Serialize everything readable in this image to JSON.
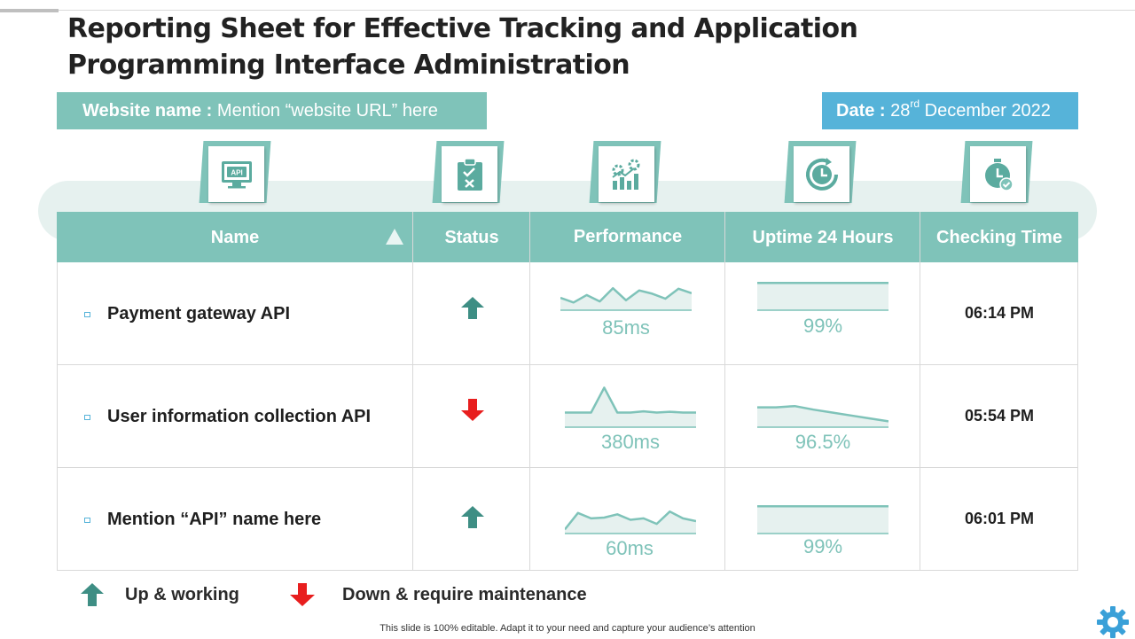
{
  "slide": {
    "title": "Reporting Sheet for Effective Tracking and Application Programming Interface Administration",
    "website_label": "Website name :",
    "website_value": "Mention “website URL” here",
    "date_label": "Date :",
    "date_day": "28",
    "date_suffix": "rd",
    "date_rest": "December 2022"
  },
  "icons": [
    "api-monitor-icon",
    "clipboard-checklist-icon",
    "performance-chart-gears-icon",
    "clock-refresh-icon",
    "stopwatch-check-icon"
  ],
  "icon_api_text": "API",
  "table": {
    "headers": [
      "Name",
      "Status",
      "Performance",
      "Uptime 24 Hours",
      "Checking Time"
    ],
    "rows": [
      {
        "name": "Payment gateway API",
        "status": "up",
        "performance": "85ms",
        "uptime": "99%",
        "time": "06:14 PM",
        "perf_trend": [
          0.45,
          0.28,
          0.55,
          0.32,
          0.8,
          0.36,
          0.72,
          0.6,
          0.42,
          0.78,
          0.62
        ],
        "uptime_trend": [
          0.99,
          0.99,
          0.99,
          0.99,
          0.99
        ]
      },
      {
        "name": "User information collection API",
        "status": "down",
        "performance": "380ms",
        "uptime": "96.5%",
        "time": "05:54 PM",
        "perf_trend": [
          0.35,
          0.35,
          0.35,
          0.95,
          0.35,
          0.35,
          0.38,
          0.35,
          0.37,
          0.35,
          0.35
        ],
        "uptime_trend": [
          0.68,
          0.68,
          0.72,
          0.6,
          0.5,
          0.4,
          0.3,
          0.2
        ]
      },
      {
        "name": "Mention “API” name here",
        "status": "up",
        "performance": "60ms",
        "uptime": "99%",
        "time": "06:01 PM",
        "perf_trend": [
          0.15,
          0.75,
          0.55,
          0.58,
          0.7,
          0.5,
          0.55,
          0.35,
          0.8,
          0.55,
          0.45
        ],
        "uptime_trend": [
          0.99,
          0.99,
          0.99,
          0.99,
          0.99
        ]
      }
    ]
  },
  "legend": {
    "up_label": "Up & working",
    "down_label": "Down & require maintenance"
  },
  "footer": "This slide is 100% editable. Adapt it to your need and capture your audience’s attention",
  "colors": {
    "teal": "#7fc3b9",
    "blue": "#56b3d9",
    "arrow_up": "#3e8e84",
    "arrow_down": "#e81e1e",
    "spark_fill": "#e6f1ef"
  }
}
